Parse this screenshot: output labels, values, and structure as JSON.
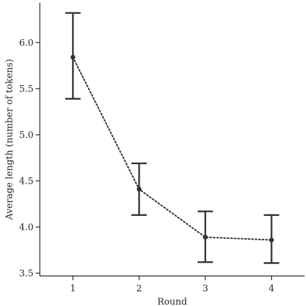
{
  "chart_data": {
    "type": "line",
    "title": "",
    "xlabel": "Round",
    "ylabel": "Average length (number of tokens)",
    "x": [
      1,
      2,
      3,
      4
    ],
    "x_tick_labels": [
      "1",
      "2",
      "3",
      "4"
    ],
    "xlim": [
      0.5,
      4.5
    ],
    "ylim": [
      3.47,
      6.43
    ],
    "y_ticks": [
      3.5,
      4.0,
      4.5,
      5.0,
      5.5,
      6.0
    ],
    "y_tick_labels": [
      "3.5",
      "4.0",
      "4.5",
      "5.0",
      "5.5",
      "6.0"
    ],
    "grid": false,
    "series": [
      {
        "values": [
          5.84,
          4.41,
          3.89,
          3.86
        ],
        "error_low": [
          5.39,
          4.13,
          3.62,
          3.61
        ],
        "error_high": [
          6.32,
          4.69,
          4.17,
          4.13
        ],
        "line_style": "dotted",
        "color": "#333333"
      }
    ]
  }
}
